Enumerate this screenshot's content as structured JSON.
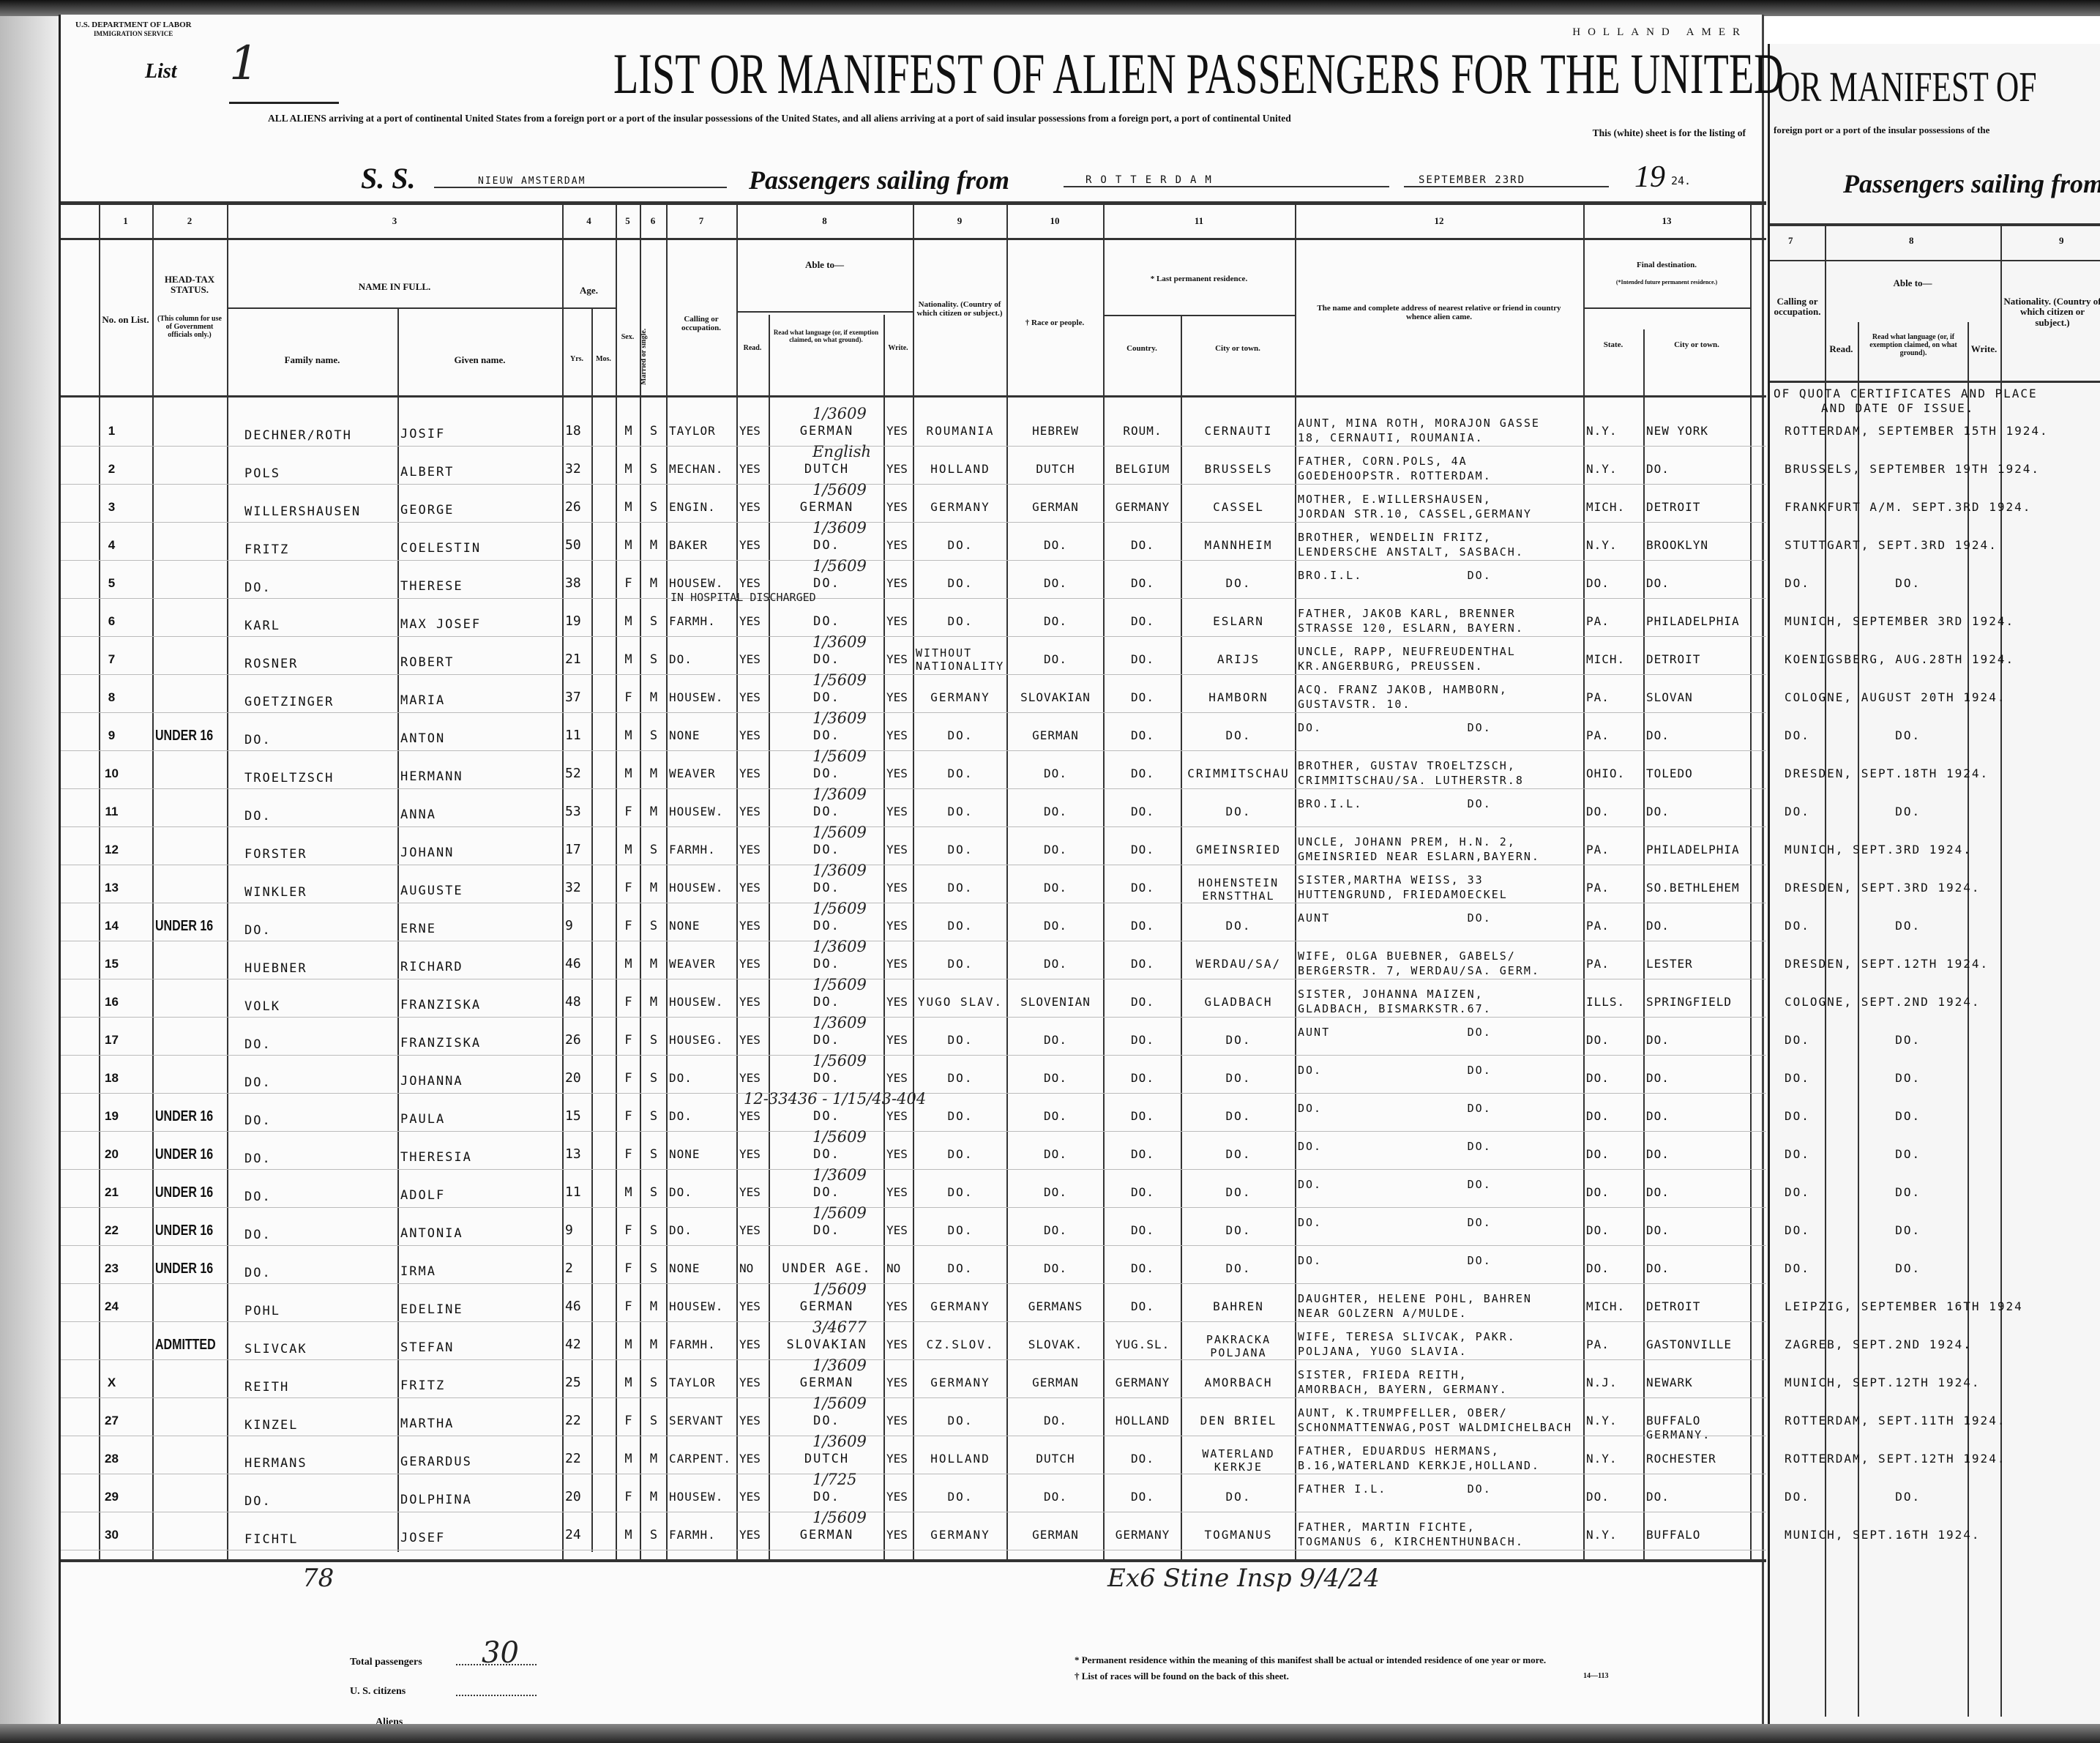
{
  "form": {
    "department": "U.S. DEPARTMENT OF LABOR",
    "service": "IMMIGRATION SERVICE",
    "list_label": "List",
    "list_number": "1",
    "line_name": "HOLLAND AMER",
    "title": "LIST OR MANIFEST OF ALIEN PASSENGERS FOR THE UNITED",
    "subtitle": "ALL ALIENS arriving at a port of continental United States from a foreign port or a port of the insular possessions of the United States, and all aliens arriving at a port of said insular possessions from a foreign port, a port of continental United",
    "subtitle2": "This (white) sheet is for the listing of",
    "ss_label": "S. S.",
    "ship": "NIEUW AMSTERDAM",
    "sailing_label": "Passengers sailing from",
    "port": "ROTTERDAM",
    "date": "SEPTEMBER 23RD",
    "year_prefix": "19",
    "year_suffix": "24."
  },
  "columns": {
    "numbers": [
      "1",
      "2",
      "3",
      "4",
      "5",
      "6",
      "7",
      "8",
      "9",
      "10",
      "11",
      "12",
      "13"
    ],
    "no": "No. on List.",
    "head_tax": "HEAD-TAX STATUS.",
    "head_tax_note": "(This column for use of Government officials only.)",
    "name": "NAME IN FULL.",
    "family": "Family name.",
    "given": "Given name.",
    "age": "Age.",
    "yrs": "Yrs.",
    "mos": "Mos.",
    "sex": "Sex.",
    "married": "Married or single.",
    "calling": "Calling or occupation.",
    "able": "Able to—",
    "read": "Read.",
    "read_lang": "Read what language (or, if exemption claimed, on what ground).",
    "write": "Write.",
    "nationality": "Nationality. (Country of which citizen or subject.)",
    "race": "† Race or people.",
    "residence": "* Last permanent residence.",
    "country": "Country.",
    "city": "City or town.",
    "relative": "The name and complete address of nearest relative or friend in country whence alien came.",
    "destination": "Final destination.",
    "destination_note": "(*Intended future permanent residence.)",
    "state": "State.",
    "dest_city": "City or town."
  },
  "rows": [
    {
      "no": "1",
      "ht": "",
      "family": "DECHNER/ROTH",
      "given": "JOSIF",
      "yrs": "18",
      "sex": "M",
      "mar": "S",
      "calling": "TAYLOR",
      "read": "YES",
      "lang": "GERMAN",
      "write": "YES",
      "nat": "ROUMANIA",
      "race": "HEBREW",
      "country": "ROUM.",
      "city": "CERNAUTI",
      "rel": "AUNT, MINA ROTH, MORAJON GASSE",
      "rel2": "18, CERNAUTI, ROUMANIA.",
      "state": "N.Y.",
      "dcity": "NEW YORK",
      "note": "1/3609",
      "quota": "ROTTERDAM, SEPTEMBER 15TH 1924."
    },
    {
      "no": "2",
      "ht": "",
      "family": "POLS",
      "given": "ALBERT",
      "yrs": "32",
      "sex": "M",
      "mar": "S",
      "calling": "MECHAN.",
      "read": "YES",
      "lang": "DUTCH",
      "write": "YES",
      "nat": "HOLLAND",
      "race": "DUTCH",
      "country": "BELGIUM",
      "city": "BRUSSELS",
      "rel": "FATHER, CORN.POLS, 4A",
      "rel2": "GOEDEHOOPSTR. ROTTERDAM.",
      "state": "N.Y.",
      "dcity": "DO.",
      "note": "English",
      "quota": "BRUSSELS, SEPTEMBER 19TH 1924."
    },
    {
      "no": "3",
      "ht": "",
      "family": "WILLERSHAUSEN",
      "given": "GEORGE",
      "yrs": "26",
      "sex": "M",
      "mar": "S",
      "calling": "ENGIN.",
      "read": "YES",
      "lang": "GERMAN",
      "write": "YES",
      "nat": "GERMANY",
      "race": "GERMAN",
      "country": "GERMANY",
      "city": "CASSEL",
      "rel": "MOTHER, E.WILLERSHAUSEN,",
      "rel2": "JORDAN STR.10, CASSEL,GERMANY",
      "state": "MICH.",
      "dcity": "DETROIT",
      "note": "1/5609",
      "quota": "FRANKFURT A/M. SEPT.3RD 1924."
    },
    {
      "no": "4",
      "ht": "",
      "family": "FRITZ",
      "given": "COELESTIN",
      "yrs": "50",
      "sex": "M",
      "mar": "M",
      "calling": "BAKER",
      "read": "YES",
      "lang": "DO.",
      "write": "YES",
      "nat": "DO.",
      "race": "DO.",
      "country": "DO.",
      "city": "MANNHEIM",
      "rel": "BROTHER, WENDELIN FRITZ,",
      "rel2": "LENDERSCHE ANSTALT, SASBACH.",
      "state": "N.Y.",
      "dcity": "BROOKLYN",
      "note": "1/3609",
      "quota": "STUTTGART, SEPT.3RD 1924."
    },
    {
      "no": "5",
      "ht": "",
      "family": "DO.",
      "given": "THERESE",
      "yrs": "38",
      "sex": "F",
      "mar": "M",
      "calling": "HOUSEW.",
      "read": "YES",
      "lang": "DO.",
      "write": "YES",
      "nat": "DO.",
      "race": "DO.",
      "country": "DO.",
      "city": "DO.",
      "rel": "BRO.I.L.             DO.",
      "rel2": "",
      "state": "DO.",
      "dcity": "DO.",
      "note": "1/5609",
      "quota": "DO.          DO."
    },
    {
      "no": "6",
      "ht": "",
      "family": "KARL",
      "given": "MAX JOSEF",
      "yrs": "19",
      "sex": "M",
      "mar": "S",
      "calling": "FARMH.",
      "read": "YES",
      "lang": "DO.",
      "write": "YES",
      "nat": "DO.",
      "race": "DO.",
      "country": "DO.",
      "city": "ESLARN",
      "rel": "FATHER, JAKOB KARL, BRENNER",
      "rel2": "STRASSE 120, ESLARN, BAYERN.",
      "state": "PA.",
      "dcity": "PHILADELPHIA",
      "note": "IN HOSPITAL    DISCHARGED",
      "quota": "MUNICH, SEPTEMBER 3RD 1924."
    },
    {
      "no": "7",
      "ht": "",
      "family": "ROSNER",
      "given": "ROBERT",
      "yrs": "21",
      "sex": "M",
      "mar": "S",
      "calling": "DO.",
      "read": "YES",
      "lang": "DO.",
      "write": "YES",
      "nat": "WITHOUT NATIONALITY",
      "race": "DO.",
      "country": "DO.",
      "city": "ARIJS",
      "rel": "UNCLE, RAPP, NEUFREUDENTHAL",
      "rel2": "KR.ANGERBURG, PREUSSEN.",
      "state": "MICH.",
      "dcity": "DETROIT",
      "note": "1/3609",
      "quota": "KOENIGSBERG, AUG.28TH 1924."
    },
    {
      "no": "8",
      "ht": "",
      "family": "GOETZINGER",
      "given": "MARIA",
      "yrs": "37",
      "sex": "F",
      "mar": "M",
      "calling": "HOUSEW.",
      "read": "YES",
      "lang": "DO.",
      "write": "YES",
      "nat": "GERMANY",
      "race": "SLOVAKIAN",
      "country": "DO.",
      "city": "HAMBORN",
      "rel": "ACQ. FRANZ JAKOB, HAMBORN,",
      "rel2": "GUSTAVSTR. 10.",
      "state": "PA.",
      "dcity": "SLOVAN",
      "note": "1/5609",
      "quota": "COLOGNE, AUGUST 20TH 1924."
    },
    {
      "no": "9",
      "ht": "UNDER 16",
      "family": "DO.",
      "given": "ANTON",
      "yrs": "11",
      "sex": "M",
      "mar": "S",
      "calling": "NONE",
      "read": "YES",
      "lang": "DO.",
      "write": "YES",
      "nat": "DO.",
      "race": "GERMAN",
      "country": "DO.",
      "city": "DO.",
      "rel": "DO.                  DO.",
      "rel2": "",
      "state": "PA.",
      "dcity": "DO.",
      "note": "1/3609",
      "quota": "DO.          DO."
    },
    {
      "no": "10",
      "ht": "",
      "family": "TROELTZSCH",
      "given": "HERMANN",
      "yrs": "52",
      "sex": "M",
      "mar": "M",
      "calling": "WEAVER",
      "read": "YES",
      "lang": "DO.",
      "write": "YES",
      "nat": "DO.",
      "race": "DO.",
      "country": "DO.",
      "city": "CRIMMITSCHAU",
      "rel": "BROTHER, GUSTAV TROELTZSCH,",
      "rel2": "CRIMMITSCHAU/SA. LUTHERSTR.8",
      "state": "OHIO.",
      "dcity": "TOLEDO",
      "note": "1/5609",
      "quota": "DRESDEN, SEPT.18TH 1924."
    },
    {
      "no": "11",
      "ht": "",
      "family": "DO.",
      "given": "ANNA",
      "yrs": "53",
      "sex": "F",
      "mar": "M",
      "calling": "HOUSEW.",
      "read": "YES",
      "lang": "DO.",
      "write": "YES",
      "nat": "DO.",
      "race": "DO.",
      "country": "DO.",
      "city": "DO.",
      "rel": "BRO.I.L.             DO.",
      "rel2": "",
      "state": "DO.",
      "dcity": "DO.",
      "note": "1/3609",
      "quota": "DO.          DO."
    },
    {
      "no": "12",
      "ht": "",
      "family": "FORSTER",
      "given": "JOHANN",
      "yrs": "17",
      "sex": "M",
      "mar": "S",
      "calling": "FARMH.",
      "read": "YES",
      "lang": "DO.",
      "write": "YES",
      "nat": "DO.",
      "race": "DO.",
      "country": "DO.",
      "city": "GMEINSRIED",
      "rel": "UNCLE, JOHANN PREM, H.N. 2,",
      "rel2": "GMEINSRIED NEAR ESLARN,BAYERN.",
      "state": "PA.",
      "dcity": "PHILADELPHIA",
      "note": "1/5609",
      "quota": "MUNICH, SEPT.3RD 1924."
    },
    {
      "no": "13",
      "ht": "",
      "family": "WINKLER",
      "given": "AUGUSTE",
      "yrs": "32",
      "sex": "F",
      "mar": "M",
      "calling": "HOUSEW.",
      "read": "YES",
      "lang": "DO.",
      "write": "YES",
      "nat": "DO.",
      "race": "DO.",
      "country": "DO.",
      "city": "HOHENSTEIN ERNSTTHAL",
      "rel": "SISTER,MARTHA WEISS, 33",
      "rel2": "HUTTENGRUND, FRIEDAMOECKEL",
      "state": "PA.",
      "dcity": "SO.BETHLEHEM",
      "note": "1/3609",
      "quota": "DRESDEN, SEPT.3RD 1924."
    },
    {
      "no": "14",
      "ht": "UNDER 16",
      "family": "DO.",
      "given": "ERNE",
      "yrs": "9",
      "sex": "F",
      "mar": "S",
      "calling": "NONE",
      "read": "YES",
      "lang": "DO.",
      "write": "YES",
      "nat": "DO.",
      "race": "DO.",
      "country": "DO.",
      "city": "DO.",
      "rel": "AUNT                 DO.",
      "rel2": "",
      "state": "PA.",
      "dcity": "DO.",
      "note": "1/5609",
      "quota": "DO.          DO."
    },
    {
      "no": "15",
      "ht": "",
      "family": "HUEBNER",
      "given": "RICHARD",
      "yrs": "46",
      "sex": "M",
      "mar": "M",
      "calling": "WEAVER",
      "read": "YES",
      "lang": "DO.",
      "write": "YES",
      "nat": "DO.",
      "race": "DO.",
      "country": "DO.",
      "city": "WERDAU/SA/",
      "rel": "WIFE, OLGA BUEBNER, GABELS/",
      "rel2": "BERGERSTR. 7, WERDAU/SA. GERM.",
      "state": "PA.",
      "dcity": "LESTER",
      "note": "1/3609",
      "quota": "DRESDEN, SEPT.12TH 1924."
    },
    {
      "no": "16",
      "ht": "",
      "family": "VOLK",
      "given": "FRANZISKA",
      "yrs": "48",
      "sex": "F",
      "mar": "M",
      "calling": "HOUSEW.",
      "read": "YES",
      "lang": "DO.",
      "write": "YES",
      "nat": "YUGO SLAV.",
      "race": "SLOVENIAN",
      "country": "DO.",
      "city": "GLADBACH",
      "rel": "SISTER, JOHANNA MAIZEN,",
      "rel2": "GLADBACH, BISMARKSTR.67.",
      "state": "ILLS.",
      "dcity": "SPRINGFIELD",
      "note": "1/5609",
      "quota": "COLOGNE, SEPT.2ND 1924."
    },
    {
      "no": "17",
      "ht": "",
      "family": "DO.",
      "given": "FRANZISKA",
      "yrs": "26",
      "sex": "F",
      "mar": "S",
      "calling": "HOUSEG.",
      "read": "YES",
      "lang": "DO.",
      "write": "YES",
      "nat": "DO.",
      "race": "DO.",
      "country": "DO.",
      "city": "DO.",
      "rel": "AUNT                 DO.",
      "rel2": "",
      "state": "DO.",
      "dcity": "DO.",
      "note": "1/3609",
      "quota": "DO.          DO."
    },
    {
      "no": "18",
      "ht": "",
      "family": "DO.",
      "given": "JOHANNA",
      "yrs": "20",
      "sex": "F",
      "mar": "S",
      "calling": "DO.",
      "read": "YES",
      "lang": "DO.",
      "write": "YES",
      "nat": "DO.",
      "race": "DO.",
      "country": "DO.",
      "city": "DO.",
      "rel": "DO.                  DO.",
      "rel2": "",
      "state": "DO.",
      "dcity": "DO.",
      "note": "1/5609",
      "quota": "DO.          DO."
    },
    {
      "no": "19",
      "ht": "UNDER 16",
      "family": "DO.",
      "given": "PAULA",
      "yrs": "15",
      "sex": "F",
      "mar": "S",
      "calling": "DO.",
      "read": "YES",
      "lang": "DO.",
      "write": "YES",
      "nat": "DO.",
      "race": "DO.",
      "country": "DO.",
      "city": "DO.",
      "rel": "DO.                  DO.",
      "rel2": "",
      "state": "DO.",
      "dcity": "DO.",
      "note": "12-33436 - 1/15/43-404",
      "quota": "DO.          DO."
    },
    {
      "no": "20",
      "ht": "UNDER 16",
      "family": "DO.",
      "given": "THERESIA",
      "yrs": "13",
      "sex": "F",
      "mar": "S",
      "calling": "NONE",
      "read": "YES",
      "lang": "DO.",
      "write": "YES",
      "nat": "DO.",
      "race": "DO.",
      "country": "DO.",
      "city": "DO.",
      "rel": "DO.                  DO.",
      "rel2": "",
      "state": "DO.",
      "dcity": "DO.",
      "note": "1/5609",
      "quota": "DO.          DO."
    },
    {
      "no": "21",
      "ht": "UNDER 16",
      "family": "DO.",
      "given": "ADOLF",
      "yrs": "11",
      "sex": "M",
      "mar": "S",
      "calling": "DO.",
      "read": "YES",
      "lang": "DO.",
      "write": "YES",
      "nat": "DO.",
      "race": "DO.",
      "country": "DO.",
      "city": "DO.",
      "rel": "DO.                  DO.",
      "rel2": "",
      "state": "DO.",
      "dcity": "DO.",
      "note": "1/3609",
      "quota": "DO.          DO."
    },
    {
      "no": "22",
      "ht": "UNDER 16",
      "family": "DO.",
      "given": "ANTONIA",
      "yrs": "9",
      "sex": "F",
      "mar": "S",
      "calling": "DO.",
      "read": "YES",
      "lang": "DO.",
      "write": "YES",
      "nat": "DO.",
      "race": "DO.",
      "country": "DO.",
      "city": "DO.",
      "rel": "DO.                  DO.",
      "rel2": "",
      "state": "DO.",
      "dcity": "DO.",
      "note": "1/5609",
      "quota": "DO.          DO."
    },
    {
      "no": "23",
      "ht": "UNDER 16",
      "family": "DO.",
      "given": "IRMA",
      "yrs": "2",
      "sex": "F",
      "mar": "S",
      "calling": "NONE",
      "read": "NO",
      "lang": "UNDER AGE.",
      "write": "NO",
      "nat": "DO.",
      "race": "DO.",
      "country": "DO.",
      "city": "DO.",
      "rel": "DO.                  DO.",
      "rel2": "",
      "state": "DO.",
      "dcity": "DO.",
      "note": "",
      "quota": "DO.          DO."
    },
    {
      "no": "24",
      "ht": "",
      "family": "POHL",
      "given": "EDELINE",
      "yrs": "46",
      "sex": "F",
      "mar": "M",
      "calling": "HOUSEW.",
      "read": "YES",
      "lang": "GERMAN",
      "write": "YES",
      "nat": "GERMANY",
      "race": "GERMANS",
      "country": "DO.",
      "city": "BAHREN",
      "rel": "DAUGHTER, HELENE POHL, BAHREN",
      "rel2": "NEAR GOLZERN A/MULDE.",
      "state": "MICH.",
      "dcity": "DETROIT",
      "note": "1/5609",
      "quota": "LEIPZIG, SEPTEMBER 16TH 1924"
    },
    {
      "no": "",
      "ht": "ADMITTED",
      "family": "SLIVCAK",
      "given": "STEFAN",
      "yrs": "42",
      "sex": "M",
      "mar": "M",
      "calling": "FARMH.",
      "read": "YES",
      "lang": "SLOVAKIAN",
      "write": "YES",
      "nat": "CZ.SLOV.",
      "race": "SLOVAK.",
      "country": "YUG.SL.",
      "city": "PAKRACKA POLJANA",
      "rel": "WIFE, TERESA SLIVCAK, PAKR.",
      "rel2": "POLJANA, YUGO SLAVIA.",
      "state": "PA.",
      "dcity": "GASTONVILLE",
      "note": "3/4677",
      "quota": "ZAGREB, SEPT.2ND 1924."
    },
    {
      "no": "X",
      "ht": "",
      "family": "REITH",
      "given": "FRITZ",
      "yrs": "25",
      "sex": "M",
      "mar": "S",
      "calling": "TAYLOR",
      "read": "YES",
      "lang": "GERMAN",
      "write": "YES",
      "nat": "GERMANY",
      "race": "GERMAN",
      "country": "GERMANY",
      "city": "AMORBACH",
      "rel": "SISTER, FRIEDA REITH,",
      "rel2": "AMORBACH, BAYERN, GERMANY.",
      "state": "N.J.",
      "dcity": "NEWARK",
      "note": "1/3609",
      "quota": "MUNICH, SEPT.12TH 1924."
    },
    {
      "no": "27",
      "ht": "",
      "family": "KINZEL",
      "given": "MARTHA",
      "yrs": "22",
      "sex": "F",
      "mar": "S",
      "calling": "SERVANT",
      "read": "YES",
      "lang": "DO.",
      "write": "YES",
      "nat": "DO.",
      "race": "DO.",
      "country": "HOLLAND",
      "city": "DEN BRIEL",
      "rel": "AUNT, K.TRUMPFELLER, OBER/",
      "rel2": "SCHONMATTENWAG,POST WALDMICHELBACH",
      "state": "N.Y.",
      "dcity": "BUFFALO",
      "note": "1/5609",
      "quota": "ROTTERDAM, SEPT.11TH 1924."
    },
    {
      "no": "28",
      "ht": "",
      "family": "HERMANS",
      "given": "GERARDUS",
      "yrs": "22",
      "sex": "M",
      "mar": "M",
      "calling": "CARPENT.",
      "read": "YES",
      "lang": "DUTCH",
      "write": "YES",
      "nat": "HOLLAND",
      "race": "DUTCH",
      "country": "DO.",
      "city": "WATERLAND KERKJE",
      "rel": "FATHER, EDUARDUS HERMANS,",
      "rel2": "B.16,WATERLAND KERKJE,HOLLAND.",
      "state": "N.Y.",
      "dcity": "ROCHESTER",
      "note": "1/3609",
      "quota": "ROTTERDAM, SEPT.12TH 1924."
    },
    {
      "no": "29",
      "ht": "",
      "family": "DO.",
      "given": "DOLPHINA",
      "yrs": "20",
      "sex": "F",
      "mar": "M",
      "calling": "HOUSEW.",
      "read": "YES",
      "lang": "DO.",
      "write": "YES",
      "nat": "DO.",
      "race": "DO.",
      "country": "DO.",
      "city": "DO.",
      "rel": "FATHER I.L.          DO.",
      "rel2": "",
      "state": "DO.",
      "dcity": "DO.",
      "note": "1/725",
      "quota": "DO.          DO."
    },
    {
      "no": "30",
      "ht": "",
      "family": "FICHTL",
      "given": "JOSEF",
      "yrs": "24",
      "sex": "M",
      "mar": "S",
      "calling": "FARMH.",
      "read": "YES",
      "lang": "GERMAN",
      "write": "YES",
      "nat": "GERMANY",
      "race": "GERMAN",
      "country": "GERMANY",
      "city": "TOGMANUS",
      "rel": "FATHER, MARTIN FICHTE,",
      "rel2": "TOGMANUS 6, KIRCHENTHUNBACH.",
      "state": "N.Y.",
      "dcity": "BUFFALO",
      "note": "1/5609",
      "quota": "MUNICH, SEPT.16TH 1924."
    }
  ],
  "row27_extra": "GERMANY.",
  "second_sheet": {
    "title": "OR MANIFEST OF",
    "subtitle": "foreign port or a port of the insular possessions of the",
    "sailing_label": "Passengers sailing from",
    "numbers": [
      "7",
      "8",
      "9"
    ],
    "calling": "Calling or occupation.",
    "able": "Able to—",
    "read": "Read.",
    "read_lang": "Read what language (or, if exemption claimed, on what ground).",
    "write": "Write.",
    "nationality": "Nationality. (Country of which citizen or subject.)",
    "quota_header": "OF QUOTA CERTIFICATES AND PLACE",
    "quota_header2": "AND DATE OF ISSUE."
  },
  "footer": {
    "total_label": "Total passengers",
    "total_value": "30",
    "citizens_label": "U. S. citizens",
    "aliens_label": "Aliens",
    "footnote1": "* Permanent residence within the meaning of this manifest shall be actual or intended residence of one year or more.",
    "footnote2": "† List of races will be found on the back of this sheet.",
    "form_number": "14—113"
  },
  "handwriting": {
    "inspector": "Ex6 Stine Insp 9/4/24",
    "count": "78"
  }
}
